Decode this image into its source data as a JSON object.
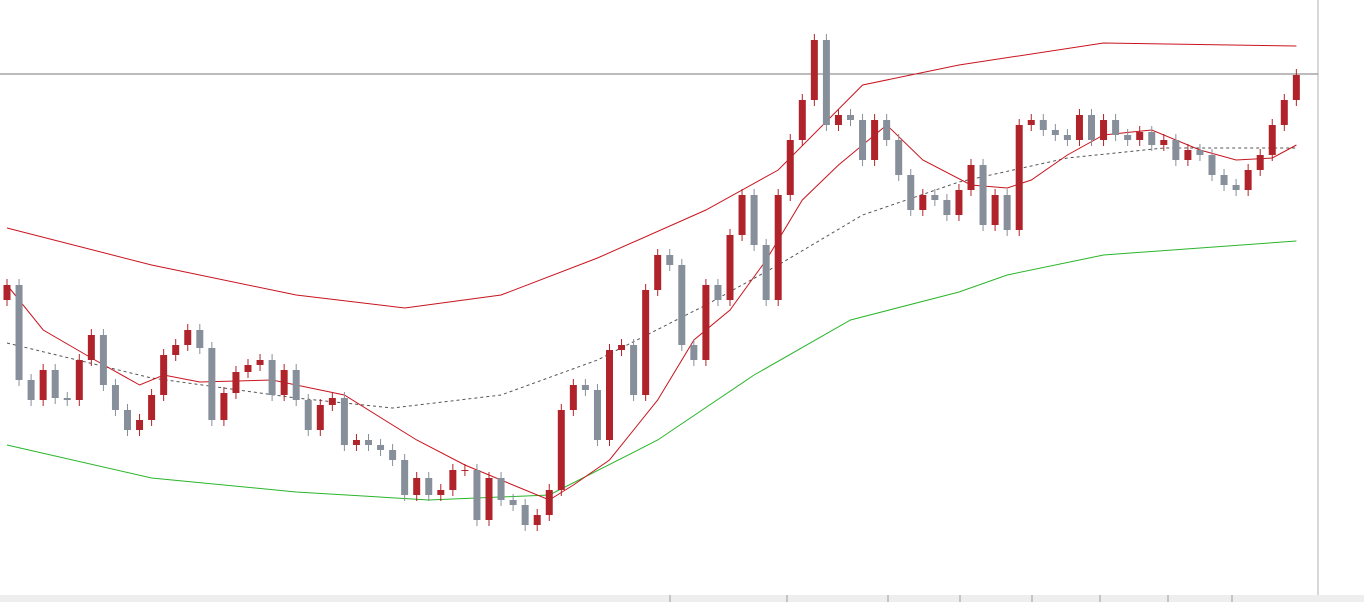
{
  "chart_data": {
    "type": "candlestick",
    "up_color": "#b0232a",
    "down_color": "#87909a",
    "ylim": [
      0,
      600
    ],
    "open": [
      300,
      315,
      220,
      200,
      230,
      202,
      200,
      240,
      265,
      215,
      190,
      170,
      180,
      205,
      245,
      255,
      270,
      252,
      180,
      207,
      228,
      235,
      240,
      205,
      230,
      200,
      170,
      195,
      202,
      155,
      160,
      155,
      150,
      140,
      105,
      122,
      105,
      110,
      130,
      130,
      80,
      122,
      100,
      95,
      75,
      85,
      110,
      190,
      215,
      210,
      160,
      250,
      255,
      205,
      310,
      345,
      335,
      255,
      240,
      315,
      300,
      365,
      405,
      355,
      300,
      405,
      460,
      500,
      560,
      475,
      485,
      480,
      440,
      480,
      460,
      425,
      390,
      405,
      400,
      385,
      410,
      435,
      375,
      405,
      370,
      475,
      480,
      470,
      465,
      460,
      485,
      460,
      480,
      465,
      460,
      468,
      455,
      460,
      440,
      450,
      445,
      425,
      415,
      410,
      430,
      445,
      475,
      500
    ],
    "high": [
      321,
      321,
      226,
      236,
      236,
      208,
      246,
      271,
      271,
      221,
      196,
      186,
      211,
      251,
      261,
      276,
      276,
      258,
      213,
      234,
      241,
      246,
      246,
      236,
      236,
      206,
      201,
      208,
      208,
      166,
      166,
      161,
      156,
      146,
      128,
      128,
      116,
      136,
      136,
      136,
      128,
      128,
      106,
      101,
      91,
      116,
      196,
      221,
      221,
      216,
      256,
      261,
      261,
      316,
      351,
      351,
      341,
      261,
      321,
      321,
      371,
      411,
      411,
      361,
      411,
      466,
      506,
      566,
      566,
      491,
      491,
      486,
      486,
      486,
      466,
      431,
      411,
      411,
      406,
      416,
      441,
      441,
      411,
      411,
      481,
      486,
      486,
      476,
      471,
      491,
      491,
      486,
      486,
      471,
      474,
      474,
      466,
      466,
      456,
      456,
      451,
      431,
      421,
      436,
      451,
      481,
      506,
      531
    ],
    "low": [
      294,
      214,
      194,
      194,
      196,
      194,
      194,
      234,
      209,
      184,
      164,
      164,
      174,
      199,
      239,
      249,
      246,
      174,
      174,
      201,
      222,
      229,
      199,
      199,
      194,
      164,
      164,
      189,
      149,
      149,
      149,
      144,
      134,
      99,
      99,
      99,
      99,
      104,
      124,
      74,
      74,
      94,
      89,
      69,
      69,
      79,
      104,
      184,
      204,
      154,
      154,
      244,
      199,
      199,
      304,
      329,
      249,
      234,
      234,
      294,
      294,
      359,
      349,
      294,
      294,
      399,
      454,
      494,
      469,
      469,
      474,
      434,
      434,
      454,
      419,
      384,
      384,
      394,
      379,
      379,
      404,
      369,
      369,
      364,
      364,
      469,
      464,
      459,
      454,
      454,
      454,
      454,
      459,
      454,
      454,
      449,
      449,
      434,
      434,
      439,
      419,
      409,
      404,
      404,
      424,
      439,
      469,
      494
    ],
    "close": [
      315,
      220,
      200,
      230,
      202,
      200,
      240,
      265,
      215,
      190,
      170,
      180,
      205,
      245,
      255,
      270,
      252,
      180,
      207,
      228,
      235,
      240,
      205,
      230,
      200,
      170,
      195,
      202,
      155,
      160,
      155,
      150,
      140,
      105,
      122,
      105,
      110,
      130,
      130,
      80,
      122,
      100,
      95,
      75,
      85,
      110,
      190,
      215,
      210,
      160,
      250,
      255,
      205,
      310,
      345,
      335,
      255,
      240,
      315,
      300,
      365,
      405,
      355,
      300,
      405,
      460,
      500,
      560,
      475,
      485,
      480,
      440,
      480,
      460,
      425,
      390,
      405,
      400,
      385,
      410,
      435,
      375,
      405,
      370,
      475,
      480,
      470,
      465,
      460,
      485,
      460,
      480,
      465,
      460,
      468,
      455,
      460,
      440,
      450,
      445,
      425,
      415,
      410,
      430,
      445,
      475,
      500,
      525
    ],
    "hline": 526,
    "overlays": [
      {
        "color": "#c8141e",
        "x": [
          0,
          12,
          24,
          33,
          41,
          49,
          58,
          64,
          71,
          79,
          91,
          107
        ],
        "values": [
          372,
          335,
          305,
          292,
          305,
          342,
          390,
          430,
          515,
          535,
          557,
          554
        ]
      },
      {
        "color": "#2ab52a",
        "x": [
          0,
          12,
          24,
          35,
          45,
          54,
          62,
          70,
          79,
          83,
          91,
          107
        ],
        "values": [
          155,
          122,
          108,
          100,
          105,
          160,
          225,
          280,
          308,
          325,
          345,
          359
        ]
      },
      {
        "color": "#555555",
        "dashed": true,
        "x": [
          0,
          12,
          24,
          32,
          41,
          49,
          58,
          64,
          71,
          79,
          88,
          96,
          107
        ],
        "values": [
          257,
          222,
          202,
          192,
          205,
          240,
          295,
          335,
          385,
          418,
          442,
          452,
          452
        ]
      },
      {
        "color": "#c8141e",
        "x": [
          0,
          3,
          7,
          11,
          13,
          16,
          22,
          28,
          34,
          38,
          43,
          45,
          47,
          50,
          54,
          57,
          60,
          63,
          66,
          69,
          71,
          73,
          76,
          80,
          83,
          85,
          88,
          91,
          95,
          99,
          102,
          105,
          107
        ],
        "values": [
          315,
          270,
          242,
          215,
          225,
          218,
          220,
          205,
          160,
          135,
          110,
          100,
          115,
          140,
          200,
          260,
          290,
          340,
          400,
          435,
          455,
          475,
          440,
          415,
          412,
          420,
          445,
          465,
          470,
          450,
          440,
          442,
          455
        ]
      }
    ]
  }
}
